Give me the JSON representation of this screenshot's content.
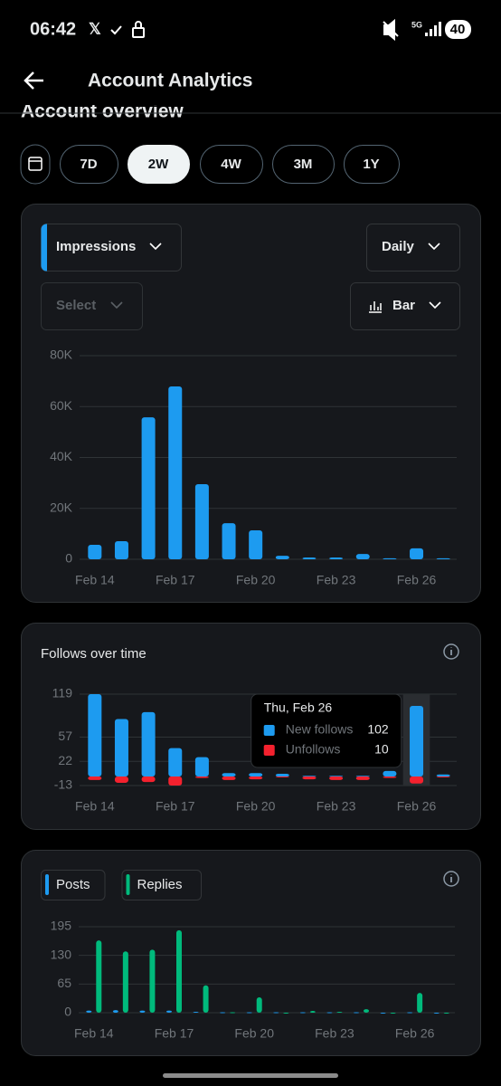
{
  "status_bar": {
    "time": "06:42",
    "network": "5G",
    "battery": "40"
  },
  "header": {
    "title": "Account Analytics",
    "section": "Account overview"
  },
  "ranges": [
    {
      "label": "7D",
      "selected": false
    },
    {
      "label": "2W",
      "selected": true
    },
    {
      "label": "4W",
      "selected": false
    },
    {
      "label": "3M",
      "selected": false
    },
    {
      "label": "1Y",
      "selected": false
    }
  ],
  "controls": {
    "metric": "Impressions",
    "interval": "Daily",
    "compare": "Select",
    "chart_type": "Bar"
  },
  "chart_data": [
    {
      "type": "bar",
      "categories": [
        "Feb 14",
        null,
        null,
        "Feb 17",
        null,
        null,
        "Feb 20",
        null,
        null,
        "Feb 23",
        null,
        null,
        "Feb 26",
        null
      ],
      "values": [
        5700,
        7100,
        55800,
        67900,
        29500,
        14200,
        11400,
        1400,
        700,
        700,
        2100,
        400,
        4300,
        400
      ],
      "color": "#1d9bf0",
      "ylim": [
        0,
        80000
      ],
      "yticks": [
        0,
        {
          "value": 20000,
          "label": "20K"
        },
        {
          "value": 40000,
          "label": "40K"
        },
        {
          "value": 60000,
          "label": "60K"
        },
        {
          "value": 80000,
          "label": "80K"
        }
      ],
      "grid": true
    },
    {
      "type": "bar",
      "title": "Follows over time",
      "categories": [
        "Feb 14",
        null,
        null,
        "Feb 17",
        null,
        null,
        "Feb 20",
        null,
        null,
        "Feb 23",
        null,
        null,
        "Feb 26",
        null
      ],
      "series": [
        {
          "name": "New follows",
          "color": "#1d9bf0",
          "values": [
            119,
            83,
            93,
            41,
            28,
            5,
            5,
            4,
            1,
            1,
            1,
            8,
            102,
            3
          ]
        },
        {
          "name": "Unfollows",
          "color": "#f4212e",
          "values": [
            -5,
            -9,
            -8,
            -13,
            -2,
            -5,
            -4,
            -1,
            -4,
            -5,
            -5,
            -2,
            -10,
            0
          ]
        }
      ],
      "barmode": "overlay",
      "ylim": [
        -13,
        119
      ],
      "yticks": [
        -13,
        22,
        57,
        119
      ],
      "grid": true,
      "tooltip": {
        "title": "Thu, Feb 26",
        "values": [
          102,
          10
        ]
      }
    },
    {
      "type": "bar",
      "categories": [
        "Feb 14",
        null,
        null,
        "Feb 17",
        null,
        null,
        "Feb 20",
        null,
        null,
        "Feb 23",
        null,
        null,
        "Feb 26",
        null
      ],
      "series": [
        {
          "name": "Posts",
          "color": "#1d9bf0",
          "values": [
            5,
            6,
            5,
            5,
            2,
            1,
            1,
            1,
            1,
            1,
            1,
            0,
            1,
            0
          ]
        },
        {
          "name": "Replies",
          "color": "#00ba7c",
          "values": [
            164,
            139,
            143,
            187,
            62,
            1,
            35,
            0,
            4,
            2,
            8,
            0,
            45,
            0
          ]
        }
      ],
      "barmode": "group",
      "legend": "top-left",
      "ylim": [
        0,
        195
      ],
      "yticks": [
        0,
        65,
        130,
        195
      ],
      "grid": true
    }
  ]
}
